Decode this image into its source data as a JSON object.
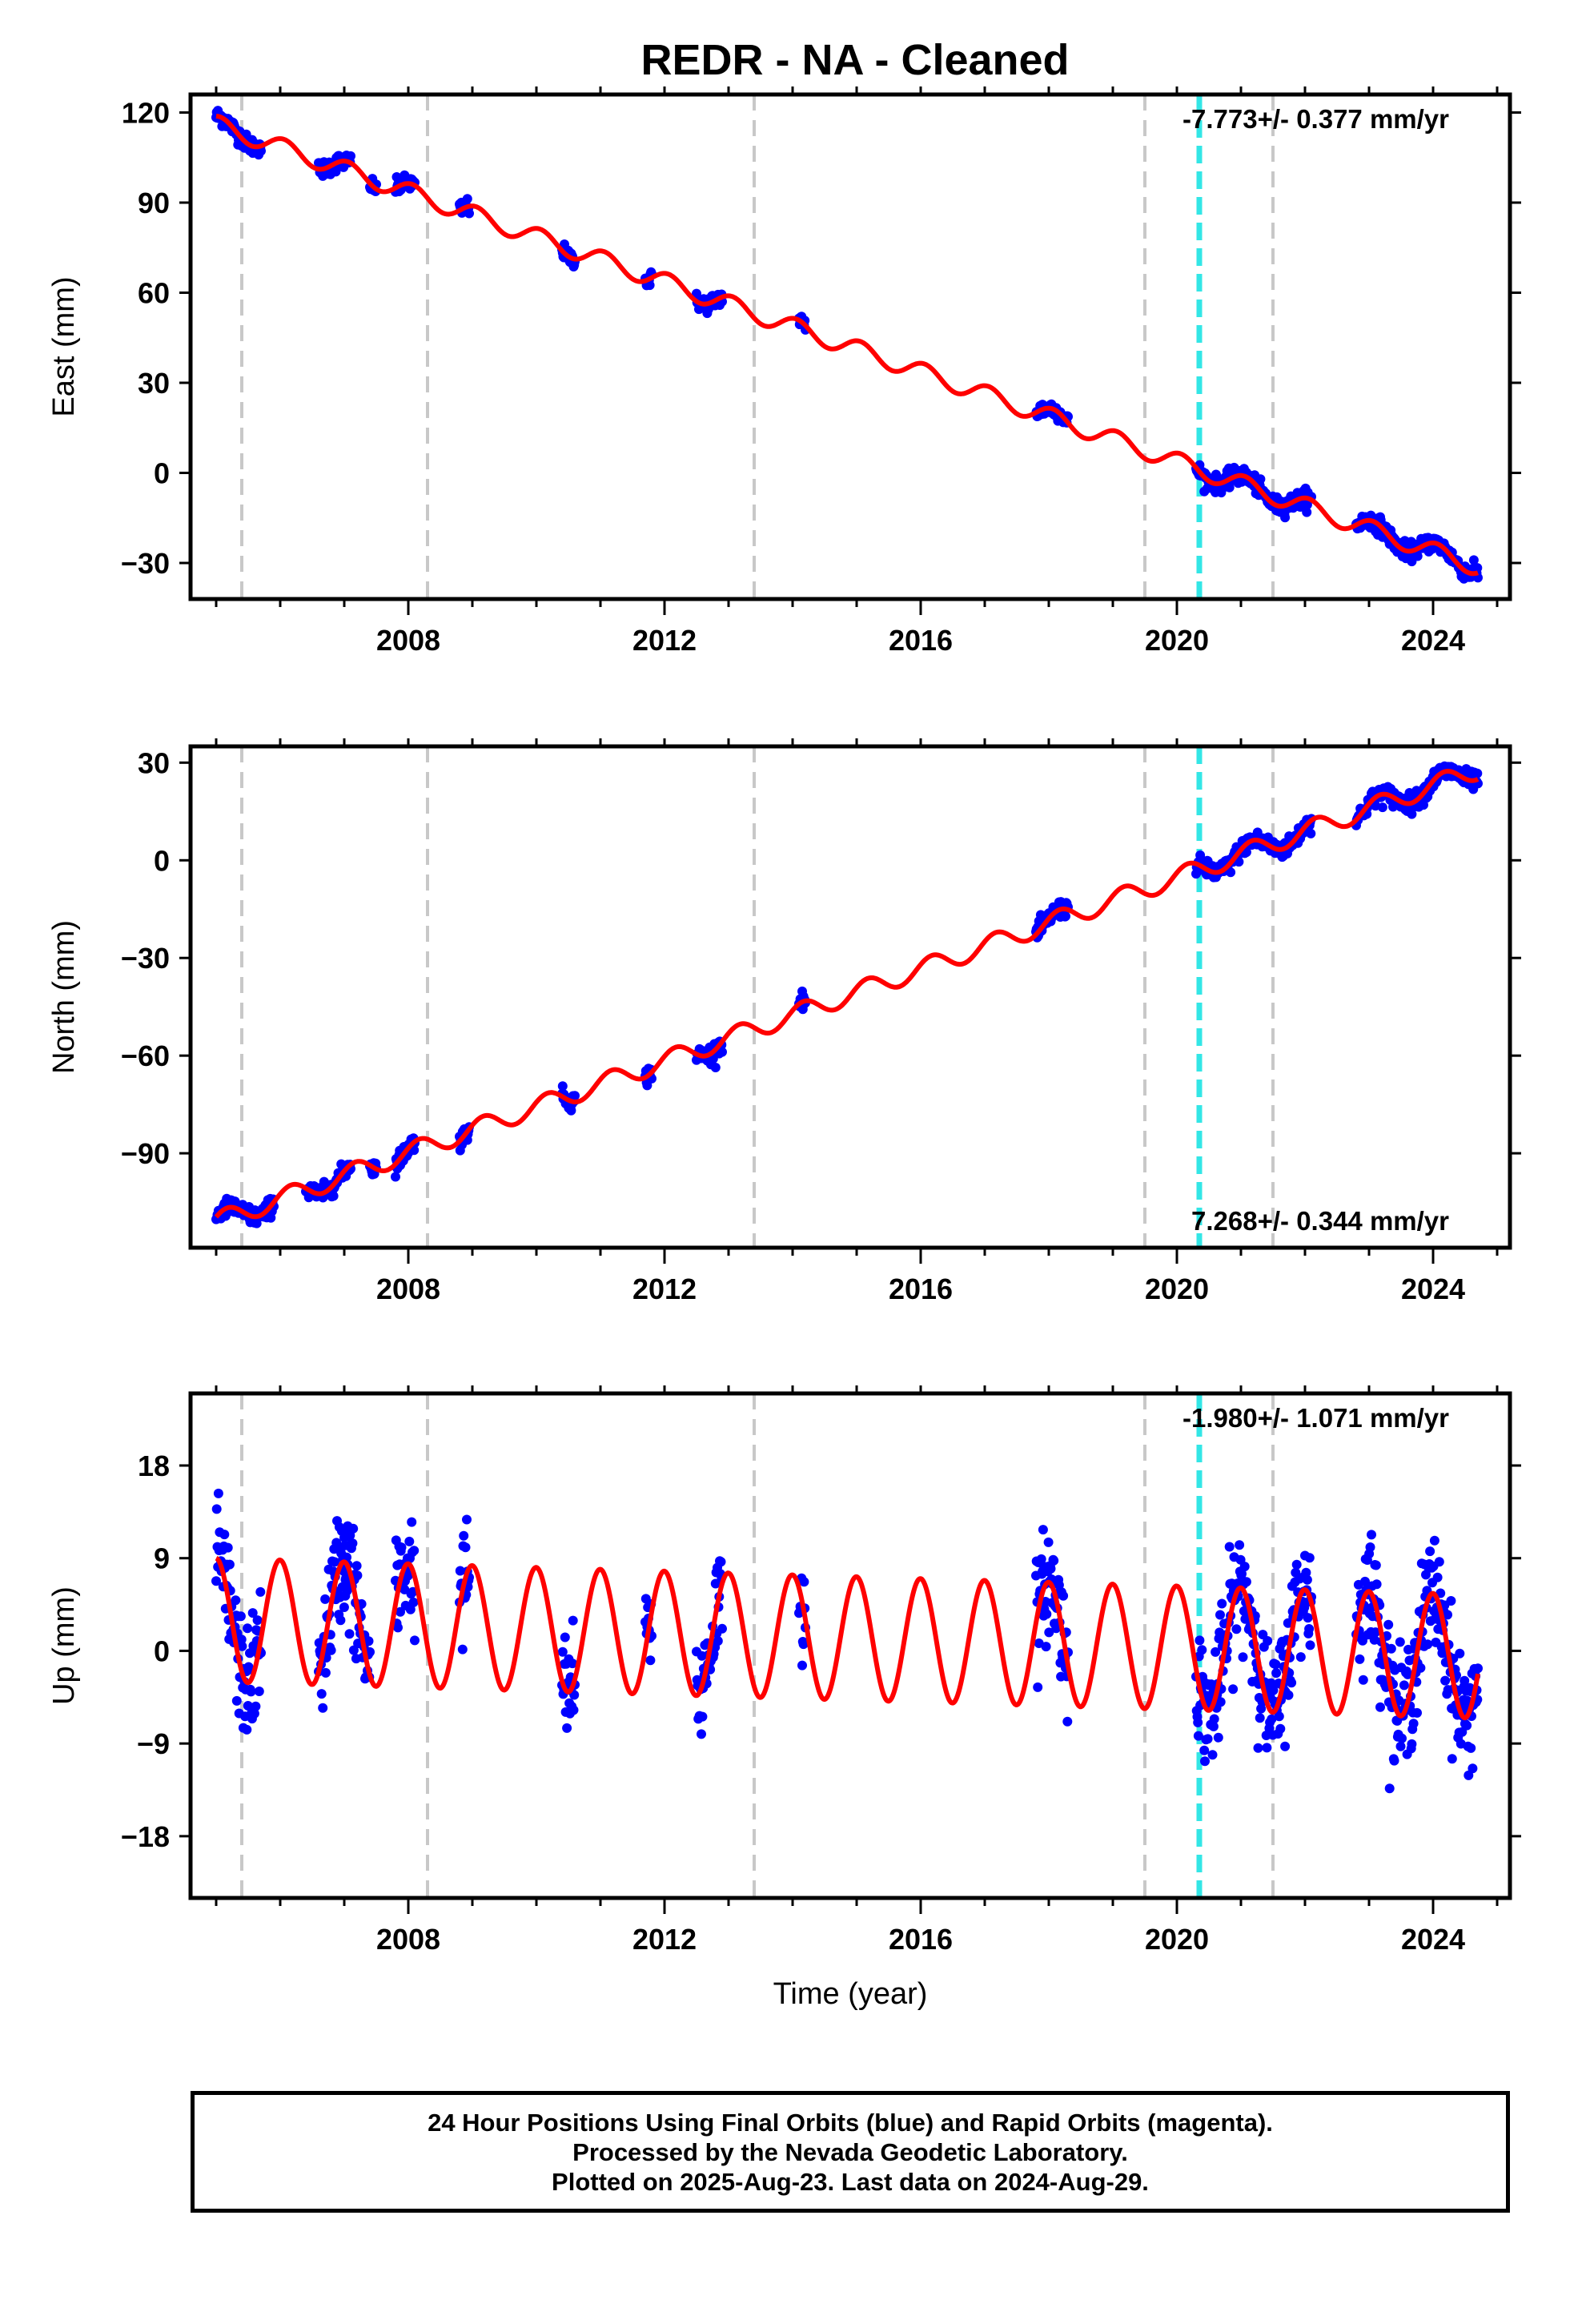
{
  "title": "REDR  - NA - Cleaned",
  "x_axis_label": "Time (year)",
  "footer": {
    "line1": "24 Hour Positions Using Final Orbits (blue) and Rapid Orbits (magenta).",
    "line2": "Processed by the Nevada Geodetic Laboratory.",
    "line3": "Plotted on 2025-Aug-23. Last data on 2024-Aug-29."
  },
  "colors": {
    "data_points": "#0000ff",
    "model_fit": "#ff0000",
    "equipment_change": "#c8c8c8",
    "earthquake_marker": "#33e6e6"
  },
  "chart_data": [
    {
      "type": "scatter",
      "name": "east",
      "ylabel": "East (mm)",
      "rate": "-7.773+/- 0.377 mm/yr",
      "rate_position": "top-right",
      "xlim": [
        2004.6,
        2025.2
      ],
      "ylim": [
        -42,
        126
      ],
      "x_ticks": [
        2008,
        2012,
        2016,
        2020,
        2024
      ],
      "y_ticks": [
        -30,
        0,
        30,
        60,
        90,
        120
      ],
      "y_tick_labels": [
        "−30",
        "0",
        "30",
        "60",
        "90",
        "120"
      ],
      "model": {
        "ref_year": 2005.0,
        "offset": 116,
        "rate": -7.48,
        "seasonal_amp": 3.0,
        "seasonal_phase": 1.2
      },
      "data_segments": [
        [
          2005.0,
          2005.7
        ],
        [
          2006.6,
          2007.1
        ],
        [
          2007.4,
          2007.5
        ],
        [
          2007.8,
          2008.1
        ],
        [
          2008.8,
          2008.95
        ],
        [
          2010.4,
          2010.6
        ],
        [
          2011.7,
          2011.8
        ],
        [
          2012.5,
          2012.9
        ],
        [
          2014.1,
          2014.2
        ],
        [
          2017.8,
          2018.3
        ],
        [
          2020.3,
          2022.1
        ],
        [
          2022.8,
          2024.7
        ]
      ],
      "noise": 2.5
    },
    {
      "type": "scatter",
      "name": "north",
      "ylabel": "North (mm)",
      "rate": "7.268+/- 0.344 mm/yr",
      "rate_position": "bottom-right",
      "xlim": [
        2004.6,
        2025.2
      ],
      "ylim": [
        -119,
        35
      ],
      "x_ticks": [
        2008,
        2012,
        2016,
        2020,
        2024
      ],
      "y_ticks": [
        -90,
        -60,
        -30,
        0,
        30
      ],
      "y_tick_labels": [
        "−90",
        "−60",
        "−30",
        "0",
        "30"
      ],
      "model": {
        "ref_year": 2005.0,
        "offset": -111,
        "rate": 7.05,
        "seasonal_amp": 3.0,
        "seasonal_phase": 0.5
      },
      "data_segments": [
        [
          2005.0,
          2005.9
        ],
        [
          2006.4,
          2007.1
        ],
        [
          2007.4,
          2007.5
        ],
        [
          2007.8,
          2008.1
        ],
        [
          2008.8,
          2008.95
        ],
        [
          2010.4,
          2010.6
        ],
        [
          2011.7,
          2011.8
        ],
        [
          2012.5,
          2012.9
        ],
        [
          2014.1,
          2014.2
        ],
        [
          2017.8,
          2018.3
        ],
        [
          2020.3,
          2022.1
        ],
        [
          2022.8,
          2024.7
        ]
      ],
      "noise": 2.5
    },
    {
      "type": "scatter",
      "name": "up",
      "ylabel": "Up (mm)",
      "rate": "-1.980+/- 1.071 mm/yr",
      "rate_position": "top-right",
      "xlim": [
        2004.6,
        2025.2
      ],
      "ylim": [
        -24,
        25
      ],
      "x_ticks": [
        2008,
        2012,
        2016,
        2020,
        2024
      ],
      "y_ticks": [
        -18,
        -9,
        0,
        9,
        18
      ],
      "y_tick_labels": [
        "−18",
        "−9",
        "0",
        "9",
        "18"
      ],
      "model": {
        "ref_year": 2005.0,
        "offset": 3.0,
        "rate": -0.18,
        "seasonal_amp": 6.0,
        "seasonal_phase": 1.6
      },
      "data_segments": [
        [
          2005.0,
          2005.7
        ],
        [
          2006.6,
          2007.1
        ],
        [
          2007.0,
          2007.4
        ],
        [
          2007.8,
          2008.1
        ],
        [
          2008.8,
          2008.95
        ],
        [
          2010.4,
          2010.6
        ],
        [
          2011.7,
          2011.8
        ],
        [
          2012.5,
          2012.9
        ],
        [
          2014.1,
          2014.2
        ],
        [
          2017.8,
          2018.3
        ],
        [
          2020.3,
          2022.1
        ],
        [
          2022.8,
          2024.7
        ]
      ],
      "noise": 5.0
    }
  ],
  "vertical_markers": {
    "equipment_change_years": [
      2005.4,
      2008.3,
      2013.4,
      2019.5,
      2021.5
    ],
    "earthquake_years": [
      2020.35
    ]
  }
}
